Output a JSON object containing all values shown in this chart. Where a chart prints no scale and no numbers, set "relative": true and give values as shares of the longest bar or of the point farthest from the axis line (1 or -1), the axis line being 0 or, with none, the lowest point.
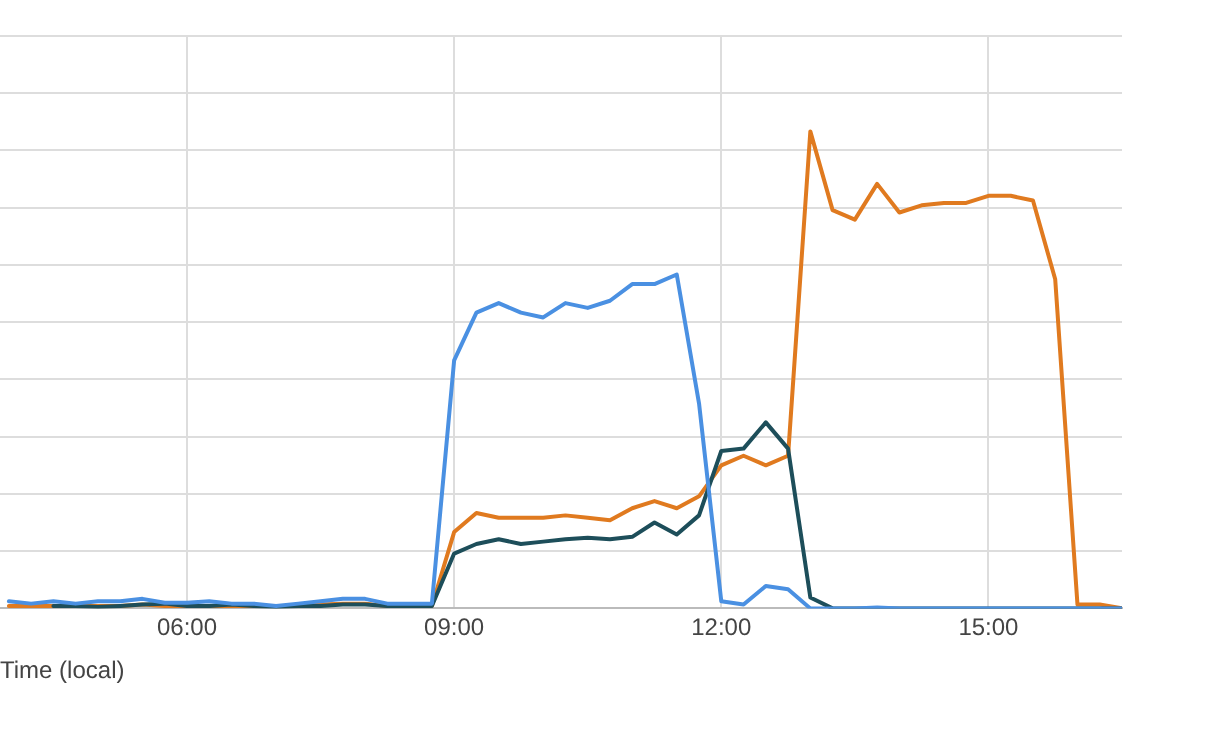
{
  "chart_data": {
    "type": "line",
    "relative": true,
    "xlabel": "Time (local)",
    "x": [
      4.0,
      4.25,
      4.5,
      4.75,
      5.0,
      5.25,
      5.5,
      5.75,
      6.0,
      6.25,
      6.5,
      6.75,
      7.0,
      7.25,
      7.5,
      7.75,
      8.0,
      8.25,
      8.5,
      8.75,
      9.0,
      9.25,
      9.5,
      9.75,
      10.0,
      10.25,
      10.5,
      10.75,
      11.0,
      11.25,
      11.5,
      11.75,
      12.0,
      12.25,
      12.5,
      12.75,
      13.0,
      13.25,
      13.5,
      13.75,
      14.0,
      14.25,
      14.5,
      14.75,
      15.0,
      15.25,
      15.5,
      15.75,
      16.0,
      16.25,
      16.5
    ],
    "xlim": [
      3.9,
      16.5
    ],
    "xticks": [
      {
        "value": 6,
        "label": "06:00"
      },
      {
        "value": 9,
        "label": "09:00"
      },
      {
        "value": 12,
        "label": "12:00"
      },
      {
        "value": 15,
        "label": "15:00"
      }
    ],
    "grid": true,
    "marker": "none",
    "line_style": "solid",
    "series": [
      {
        "color": "#e07a1f",
        "values": [
          0.005,
          0.005,
          0.005,
          0.005,
          0.005,
          0.005,
          0.008,
          0.005,
          0.005,
          0.005,
          0.005,
          0.005,
          0.005,
          0.005,
          0.008,
          0.01,
          0.01,
          0.005,
          0.005,
          0.005,
          0.16,
          0.2,
          0.19,
          0.19,
          0.19,
          0.195,
          0.19,
          0.185,
          0.21,
          0.225,
          0.21,
          0.235,
          0.3,
          0.32,
          0.3,
          0.32,
          1.0,
          0.835,
          0.815,
          0.89,
          0.83,
          0.845,
          0.85,
          0.85,
          0.865,
          0.865,
          0.855,
          0.69,
          0.008,
          0.008,
          0.0
        ]
      },
      {
        "color": "#1d4e5a",
        "values": [
          null,
          null,
          0.005,
          0.005,
          0.003,
          0.005,
          0.008,
          0.01,
          0.005,
          0.005,
          0.008,
          0.005,
          0.003,
          0.005,
          0.005,
          0.008,
          0.008,
          0.005,
          0.005,
          0.005,
          0.115,
          0.135,
          0.145,
          0.135,
          0.14,
          0.145,
          0.148,
          0.145,
          0.15,
          0.18,
          0.155,
          0.195,
          0.33,
          0.335,
          0.39,
          0.335,
          0.023,
          0.0,
          0.0,
          0.0,
          0.0,
          0.0,
          0.0,
          0.0,
          0.0,
          0.0,
          0.0,
          0.0,
          0.0,
          0.0,
          0.0
        ]
      },
      {
        "color": "#4a90e2",
        "values": [
          0.015,
          0.01,
          0.015,
          0.01,
          0.015,
          0.015,
          0.02,
          0.012,
          0.012,
          0.015,
          0.01,
          0.01,
          0.005,
          0.01,
          0.015,
          0.02,
          0.02,
          0.01,
          0.01,
          0.01,
          0.52,
          0.62,
          0.64,
          0.62,
          0.61,
          0.64,
          0.63,
          0.645,
          0.68,
          0.68,
          0.7,
          0.43,
          0.015,
          0.008,
          0.047,
          0.04,
          0.0,
          0.0,
          0.0,
          0.002,
          0.0,
          0.0,
          0.0,
          0.0,
          0.0,
          0.0,
          0.0,
          0.0,
          0.0,
          0.0,
          0.0
        ]
      }
    ]
  }
}
